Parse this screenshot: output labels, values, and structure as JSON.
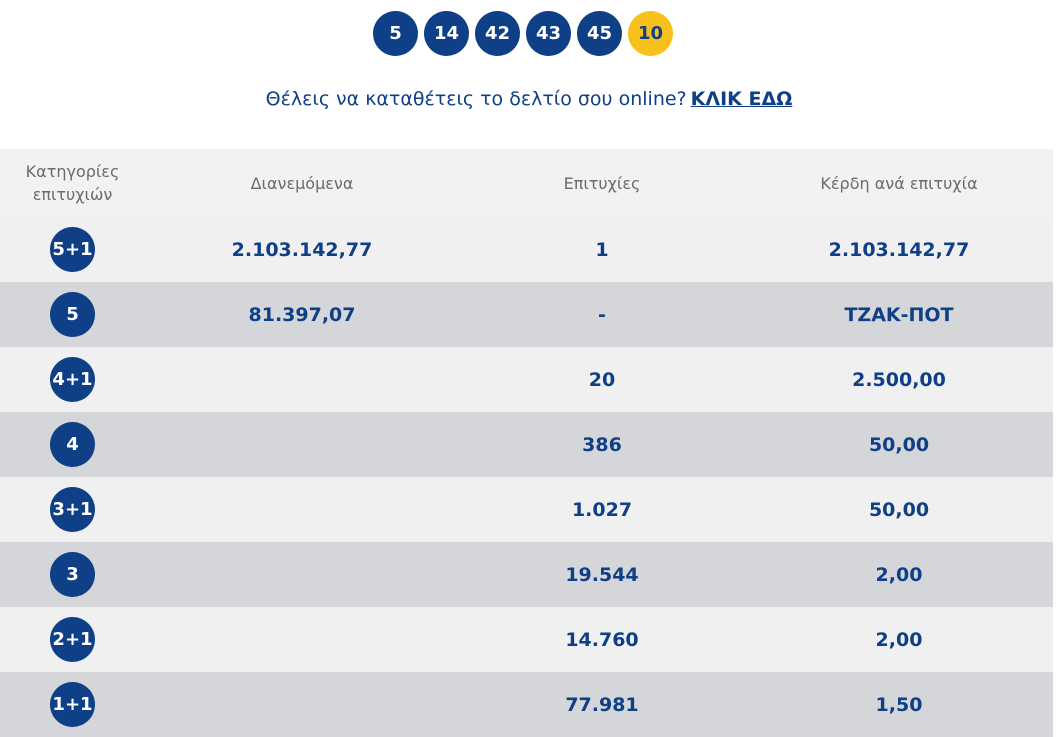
{
  "draw": {
    "numbers": [
      "5",
      "14",
      "42",
      "43",
      "45"
    ],
    "joker": "10",
    "joker_color": "#f7c01b",
    "ball_color": "#0e3f87"
  },
  "cta": {
    "text": "Θέλεις να καταθέτεις το δελτίο σου online?",
    "link_label": "ΚΛΙΚ ΕΔΩ"
  },
  "table": {
    "headers": {
      "category": "Κατηγορίες επιτυχιών",
      "distributed": "Διανεμόμενα",
      "winners": "Επιτυχίες",
      "prize": "Κέρδη ανά επιτυχία"
    },
    "rows": [
      {
        "category": "5+1",
        "distributed": "2.103.142,77",
        "winners": "1",
        "prize": "2.103.142,77"
      },
      {
        "category": "5",
        "distributed": "81.397,07",
        "winners": "-",
        "prize": "ΤΖΑΚ-ΠΟΤ"
      },
      {
        "category": "4+1",
        "distributed": "",
        "winners": "20",
        "prize": "2.500,00"
      },
      {
        "category": "4",
        "distributed": "",
        "winners": "386",
        "prize": "50,00"
      },
      {
        "category": "3+1",
        "distributed": "",
        "winners": "1.027",
        "prize": "50,00"
      },
      {
        "category": "3",
        "distributed": "",
        "winners": "19.544",
        "prize": "2,00"
      },
      {
        "category": "2+1",
        "distributed": "",
        "winners": "14.760",
        "prize": "2,00"
      },
      {
        "category": "1+1",
        "distributed": "",
        "winners": "77.981",
        "prize": "1,50"
      }
    ]
  }
}
